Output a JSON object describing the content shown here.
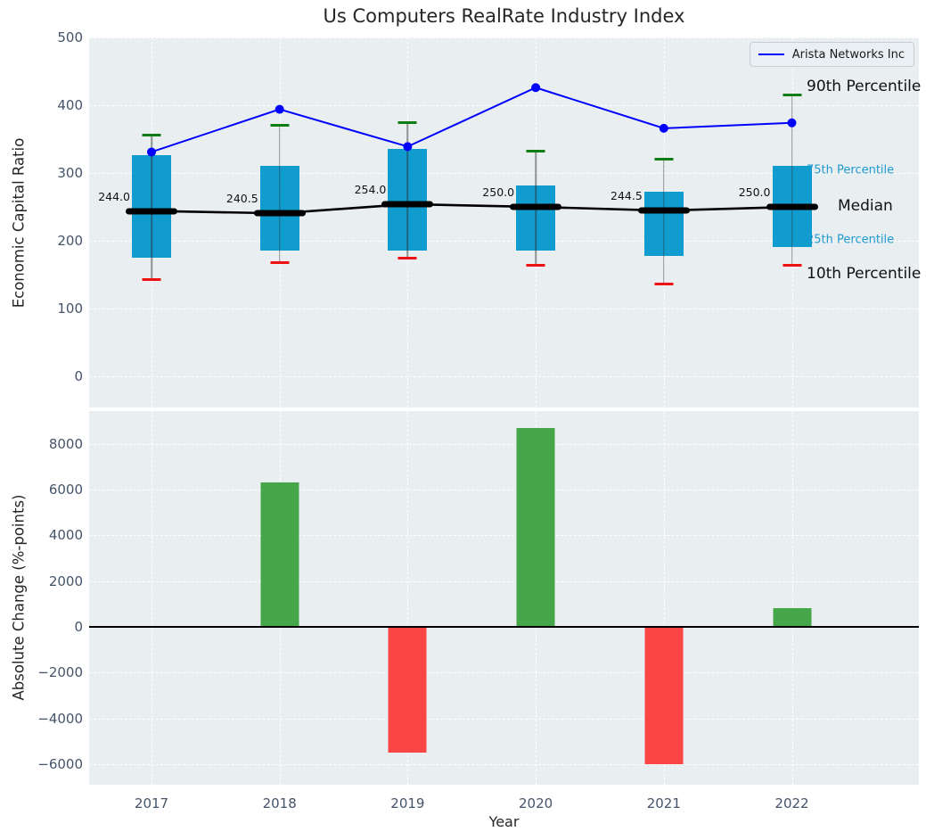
{
  "title": "Us Computers RealRate Industry Index",
  "colors": {
    "axes_background": "#e9eef1",
    "grid": "#ffffff",
    "tick_label": "#44546a",
    "text": "#262626",
    "box_fill": "#0996cd",
    "median": "#000000",
    "company_line": "#0000ff",
    "cap_90th": "#0f7d14",
    "cap_10th": "#ee1111",
    "bar_positive": "#3ca140",
    "bar_negative": "#fb3b3b",
    "annotation_percentile": "#1f9bd0"
  },
  "chart_data": [
    {
      "type": "boxplot+line",
      "title": "Us Computers RealRate Industry Index",
      "ylabel": "Economic Capital Ratio",
      "ylim": [
        -46,
        500
      ],
      "yticks": [
        0,
        100,
        200,
        300,
        400,
        500
      ],
      "grid": true,
      "categories": [
        "2017",
        "2018",
        "2019",
        "2020",
        "2021",
        "2022"
      ],
      "boxes": [
        {
          "year": "2017",
          "p90": 356,
          "p75": 326,
          "median": 244.0,
          "p25": 175,
          "p10": 143,
          "label": "244.0"
        },
        {
          "year": "2018",
          "p90": 371,
          "p75": 311,
          "median": 240.5,
          "p25": 186,
          "p10": 168,
          "label": "240.5"
        },
        {
          "year": "2019",
          "p90": 375,
          "p75": 335,
          "median": 254.0,
          "p25": 185,
          "p10": 175,
          "label": "254.0"
        },
        {
          "year": "2020",
          "p90": 332,
          "p75": 281,
          "median": 250.0,
          "p25": 185,
          "p10": 164,
          "label": "250.0"
        },
        {
          "year": "2021",
          "p90": 321,
          "p75": 273,
          "median": 244.5,
          "p25": 178,
          "p10": 136,
          "label": "244.5"
        },
        {
          "year": "2022",
          "p90": 415,
          "p75": 311,
          "median": 250.0,
          "p25": 191,
          "p10": 164,
          "label": "250.0"
        }
      ],
      "series": [
        {
          "name": "Arista Networks Inc",
          "values": [
            331,
            394,
            339,
            426,
            366,
            374
          ]
        }
      ],
      "legend": {
        "label": "Arista Networks Inc",
        "position": "upper right"
      },
      "annotations": [
        {
          "label": "90th Percentile",
          "value": 428,
          "style": "large"
        },
        {
          "label": "75th Percentile",
          "value": 304,
          "style": "small"
        },
        {
          "label": "Median",
          "value": 251,
          "style": "large",
          "x_offset": 35
        },
        {
          "label": "25th Percentile",
          "value": 201,
          "style": "small"
        },
        {
          "label": "10th Percentile",
          "value": 151,
          "style": "large"
        }
      ]
    },
    {
      "type": "bar",
      "ylabel": "Absolute Change (%-points)",
      "xlabel": "Year",
      "ylim": [
        -6900,
        9430
      ],
      "yticks": [
        8000,
        6000,
        4000,
        2000,
        0,
        -2000,
        -4000,
        -6000
      ],
      "grid": true,
      "categories": [
        "2017",
        "2018",
        "2019",
        "2020",
        "2021",
        "2022"
      ],
      "values": [
        null,
        6300,
        -5500,
        8700,
        -6000,
        800
      ]
    }
  ]
}
